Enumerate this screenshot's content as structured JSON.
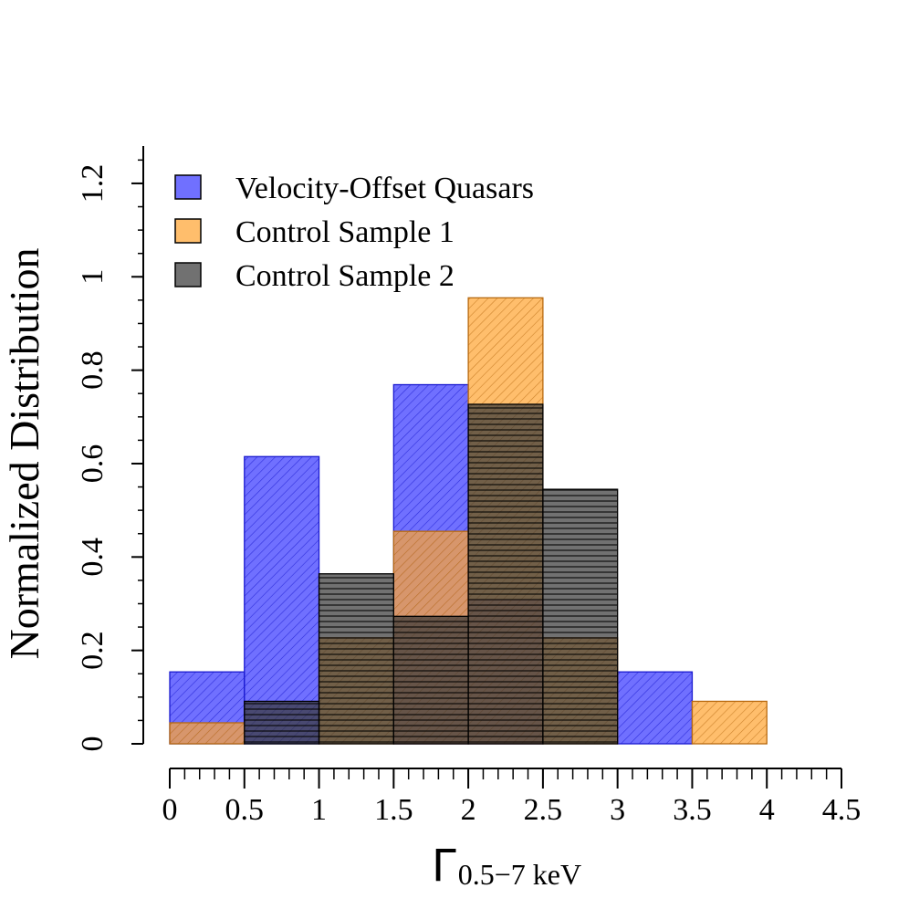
{
  "chart_data": {
    "type": "bar",
    "subtype": "overlaid-histogram",
    "xlabel": "Γ",
    "xlabel_subscript": "0.5−7 keV",
    "ylabel": "Normalized Distribution",
    "xlim": [
      0,
      4.5
    ],
    "ylim": [
      0,
      1.28
    ],
    "x_ticks": [
      0,
      0.5,
      1,
      1.5,
      2,
      2.5,
      3,
      3.5,
      4,
      4.5
    ],
    "x_tick_labels": [
      "0",
      "0.5",
      "1",
      "1.5",
      "2",
      "2.5",
      "3",
      "3.5",
      "4",
      "4.5"
    ],
    "x_minor_step": 0.1,
    "y_ticks": [
      0,
      0.2,
      0.4,
      0.6,
      0.8,
      1,
      1.2
    ],
    "y_tick_labels": [
      "0",
      "0.2",
      "0.4",
      "0.6",
      "0.8",
      "1",
      "1.2"
    ],
    "y_minor_step": 0.05,
    "bin_edges": [
      0,
      0.5,
      1,
      1.5,
      2,
      2.5,
      3,
      3.5,
      4
    ],
    "legend_position": "top-left",
    "series": [
      {
        "name": "Velocity-Offset Quasars",
        "fill": "#4040ff",
        "stroke": "#1a1ad0",
        "hatch": "diagonal",
        "values": [
          0.154,
          0.615,
          0,
          0.769,
          0.308,
          0,
          0.154,
          0
        ]
      },
      {
        "name": "Control Sample 1",
        "fill": "#ffa533",
        "stroke": "#b86a10",
        "hatch": "diagonal",
        "values": [
          0.045,
          0,
          0.227,
          0.455,
          0.955,
          0.227,
          0,
          0.091
        ]
      },
      {
        "name": "Control Sample 2",
        "fill": "#3a3a3a",
        "stroke": "#000000",
        "hatch": "horizontal",
        "values": [
          0,
          0.091,
          0.364,
          0.273,
          0.727,
          0.545,
          0,
          0
        ]
      }
    ]
  }
}
